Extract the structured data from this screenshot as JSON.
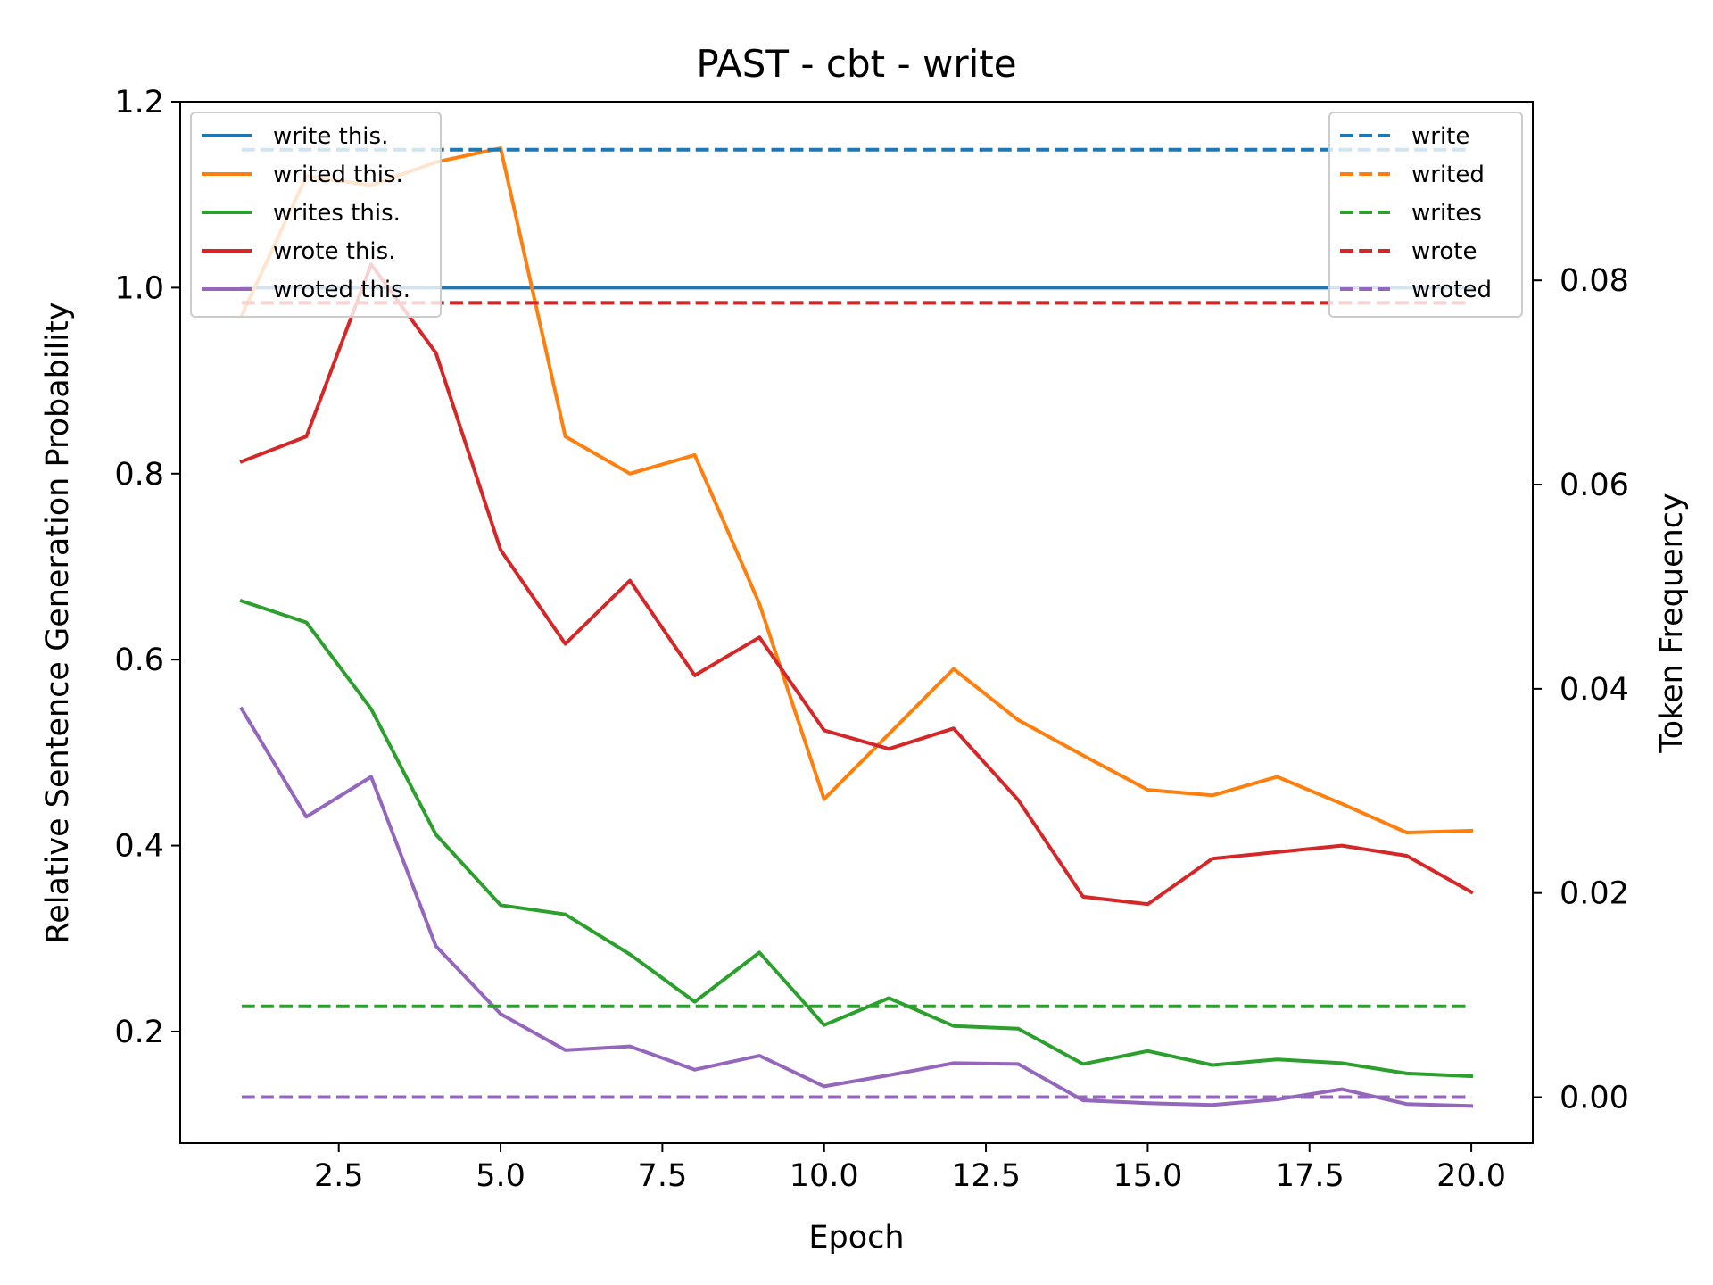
{
  "chart_data": {
    "type": "line",
    "title": "PAST - cbt - write",
    "xlabel": "Epoch",
    "ylabel": "Relative Sentence Generation Probability",
    "y2label": "Token Frequency",
    "xlim": [
      0.05,
      20.95
    ],
    "ylim": [
      0.08,
      1.2
    ],
    "y2lim": [
      -0.0045,
      0.0975
    ],
    "xticks": [
      2.5,
      5.0,
      7.5,
      10.0,
      12.5,
      15.0,
      17.5,
      20.0
    ],
    "xtick_labels": [
      "2.5",
      "5.0",
      "7.5",
      "10.0",
      "12.5",
      "15.0",
      "17.5",
      "20.0"
    ],
    "yticks": [
      0.2,
      0.4,
      0.6,
      0.8,
      1.0,
      1.2
    ],
    "ytick_labels": [
      "0.2",
      "0.4",
      "0.6",
      "0.8",
      "1.0",
      "1.2"
    ],
    "y2ticks": [
      0.0,
      0.02,
      0.04,
      0.06,
      0.08
    ],
    "y2tick_labels": [
      "0.00",
      "0.02",
      "0.04",
      "0.06",
      "0.08"
    ],
    "x": [
      1,
      2,
      3,
      4,
      5,
      6,
      7,
      8,
      9,
      10,
      11,
      12,
      13,
      14,
      15,
      16,
      17,
      18,
      19,
      20
    ],
    "grid": false,
    "legend_left_placement": "upper-left",
    "legend_right_placement": "upper-right",
    "series": [
      {
        "name": "write this.",
        "color": "#1f77b4",
        "axis": "left",
        "style": "solid",
        "values": [
          1.0,
          1.0,
          1.0,
          1.0,
          1.0,
          1.0,
          1.0,
          1.0,
          1.0,
          1.0,
          1.0,
          1.0,
          1.0,
          1.0,
          1.0,
          1.0,
          1.0,
          1.0,
          1.0,
          1.0
        ]
      },
      {
        "name": "writed this.",
        "color": "#ff7f0e",
        "axis": "left",
        "style": "solid",
        "values": [
          0.97,
          1.12,
          1.11,
          1.135,
          1.15,
          0.84,
          0.8,
          0.82,
          0.66,
          0.45,
          0.52,
          0.59,
          0.535,
          0.497,
          0.46,
          0.454,
          0.474,
          0.445,
          0.414,
          0.416
        ]
      },
      {
        "name": "writes this.",
        "color": "#2ca02c",
        "axis": "left",
        "style": "solid",
        "values": [
          0.663,
          0.64,
          0.547,
          0.412,
          0.336,
          0.326,
          0.283,
          0.232,
          0.285,
          0.207,
          0.236,
          0.206,
          0.203,
          0.165,
          0.179,
          0.164,
          0.17,
          0.166,
          0.155,
          0.152
        ]
      },
      {
        "name": "wrote this.",
        "color": "#d62728",
        "axis": "left",
        "style": "solid",
        "values": [
          0.813,
          0.84,
          1.025,
          0.93,
          0.718,
          0.617,
          0.685,
          0.583,
          0.624,
          0.524,
          0.504,
          0.526,
          0.449,
          0.345,
          0.337,
          0.386,
          0.393,
          0.4,
          0.389,
          0.35
        ]
      },
      {
        "name": "wroted this.",
        "color": "#9467bd",
        "axis": "left",
        "style": "solid",
        "values": [
          0.547,
          0.431,
          0.474,
          0.292,
          0.219,
          0.18,
          0.184,
          0.159,
          0.174,
          0.141,
          0.153,
          0.166,
          0.165,
          0.126,
          0.123,
          0.121,
          0.127,
          0.138,
          0.122,
          0.12
        ]
      },
      {
        "name": "write",
        "color": "#1f77b4",
        "axis": "right",
        "style": "dashed",
        "values": [
          0.0928,
          0.0928,
          0.0928,
          0.0928,
          0.0928,
          0.0928,
          0.0928,
          0.0928,
          0.0928,
          0.0928,
          0.0928,
          0.0928,
          0.0928,
          0.0928,
          0.0928,
          0.0928,
          0.0928,
          0.0928,
          0.0928,
          0.0928
        ]
      },
      {
        "name": "writed",
        "color": "#ff7f0e",
        "axis": "right",
        "style": "dashed",
        "values": [
          0.0778,
          0.0778,
          0.0778,
          0.0778,
          0.0778,
          0.0778,
          0.0778,
          0.0778,
          0.0778,
          0.0778,
          0.0778,
          0.0778,
          0.0778,
          0.0778,
          0.0778,
          0.0778,
          0.0778,
          0.0778,
          0.0778,
          0.0778
        ]
      },
      {
        "name": "writes",
        "color": "#2ca02c",
        "axis": "right",
        "style": "dashed",
        "values": [
          0.0089,
          0.0089,
          0.0089,
          0.0089,
          0.0089,
          0.0089,
          0.0089,
          0.0089,
          0.0089,
          0.0089,
          0.0089,
          0.0089,
          0.0089,
          0.0089,
          0.0089,
          0.0089,
          0.0089,
          0.0089,
          0.0089,
          0.0089
        ]
      },
      {
        "name": "wrote",
        "color": "#d62728",
        "axis": "right",
        "style": "dashed",
        "values": [
          0.0778,
          0.0778,
          0.0778,
          0.0778,
          0.0778,
          0.0778,
          0.0778,
          0.0778,
          0.0778,
          0.0778,
          0.0778,
          0.0778,
          0.0778,
          0.0778,
          0.0778,
          0.0778,
          0.0778,
          0.0778,
          0.0778,
          0.0778
        ]
      },
      {
        "name": "wroted",
        "color": "#9467bd",
        "axis": "right",
        "style": "dashed",
        "values": [
          0.0,
          0.0,
          0.0,
          0.0,
          0.0,
          0.0,
          0.0,
          0.0,
          0.0,
          0.0,
          0.0,
          0.0,
          0.0,
          0.0,
          0.0,
          0.0,
          0.0,
          0.0,
          0.0,
          0.0
        ]
      }
    ]
  }
}
